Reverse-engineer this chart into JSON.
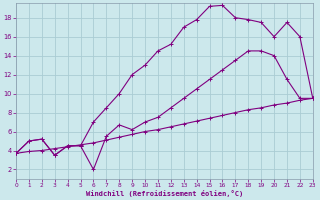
{
  "xlabel": "Windchill (Refroidissement éolien,°C)",
  "bg_color": "#cce8ec",
  "line_color": "#800080",
  "grid_color": "#aaccd4",
  "spine_color": "#8899aa",
  "xlim": [
    0,
    23
  ],
  "ylim": [
    1,
    19.5
  ],
  "xticks": [
    0,
    1,
    2,
    3,
    4,
    5,
    6,
    7,
    8,
    9,
    10,
    11,
    12,
    13,
    14,
    15,
    16,
    17,
    18,
    19,
    20,
    21,
    22,
    23
  ],
  "yticks": [
    2,
    4,
    6,
    8,
    10,
    12,
    14,
    16,
    18
  ],
  "line_a_x": [
    0,
    1,
    2,
    3,
    4,
    5,
    6,
    7,
    8,
    9,
    10,
    11,
    12,
    13,
    14,
    15,
    16,
    17,
    18,
    19,
    20,
    21,
    22,
    23
  ],
  "line_a_y": [
    3.7,
    5.0,
    5.2,
    3.5,
    4.5,
    4.5,
    2.0,
    5.5,
    6.7,
    6.2,
    7.0,
    7.5,
    8.5,
    9.5,
    10.5,
    11.5,
    12.5,
    13.5,
    14.5,
    14.5,
    14.0,
    11.5,
    9.5,
    9.5
  ],
  "line_b_x": [
    0,
    1,
    2,
    3,
    4,
    5,
    6,
    7,
    8,
    9,
    10,
    11,
    12,
    13,
    14,
    15,
    16,
    17,
    18,
    19,
    20,
    21,
    22,
    23
  ],
  "line_b_y": [
    3.7,
    5.0,
    5.2,
    3.5,
    4.5,
    4.5,
    7.0,
    8.5,
    10.0,
    12.0,
    13.0,
    14.5,
    15.2,
    17.0,
    17.8,
    19.2,
    19.3,
    18.0,
    17.8,
    17.5,
    16.0,
    17.5,
    16.0,
    9.5
  ],
  "line_c_x": [
    0,
    1,
    2,
    3,
    4,
    5,
    6,
    7,
    8,
    9,
    10,
    11,
    12,
    13,
    14,
    15,
    16,
    17,
    18,
    19,
    20,
    21,
    22,
    23
  ],
  "line_c_y": [
    3.7,
    3.9,
    4.0,
    4.2,
    4.4,
    4.6,
    4.8,
    5.1,
    5.4,
    5.7,
    6.0,
    6.2,
    6.5,
    6.8,
    7.1,
    7.4,
    7.7,
    8.0,
    8.3,
    8.5,
    8.8,
    9.0,
    9.3,
    9.5
  ]
}
